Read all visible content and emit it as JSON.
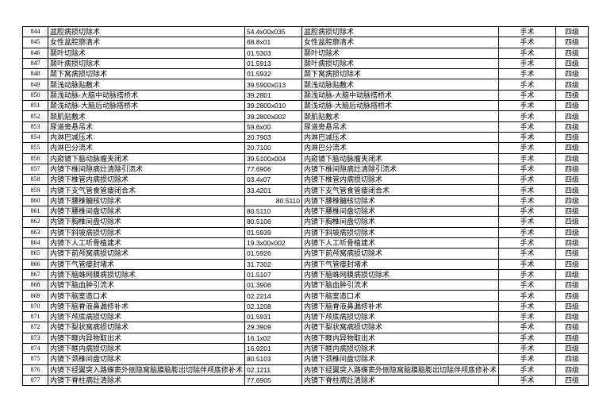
{
  "table": {
    "rows": [
      [
        "844",
        "盆腔病损切除术",
        "54.4x00x035",
        "盆腔病损切除术",
        "手术",
        "四级"
      ],
      [
        "845",
        "女性盆腔廓清术",
        "68.8x01",
        "女性盆腔廓清术",
        "手术",
        "四级"
      ],
      [
        "846",
        "颞叶切除术",
        "01.5303",
        "颞叶切除术",
        "手术",
        "四级"
      ],
      [
        "847",
        "颞叶病损切除术",
        "01.5913",
        "颞叶病损切除术",
        "手术",
        "四级"
      ],
      [
        "848",
        "颞下窝病损切除术",
        "01.5932",
        "颞下窝病损切除术",
        "手术",
        "四级"
      ],
      [
        "849",
        "颞浅动脉贴敷术",
        "39.5900x013",
        "颞浅动脉贴敷术",
        "手术",
        "四级"
      ],
      [
        "850",
        "颞浅动脉-大脑中动脉搭桥术",
        "39.2801",
        "颞浅动脉-大脑中动脉搭桥术",
        "手术",
        "四级"
      ],
      [
        "851",
        "颞浅动脉-大脑后动脉搭桥术",
        "39.2800x010",
        "颞浅动脉-大脑后动脉搭桥术",
        "手术",
        "四级"
      ],
      [
        "852",
        "颞肌贴敷术",
        "39.2800x002",
        "颞肌贴敷术",
        "手术",
        "四级"
      ],
      [
        "853",
        "尿道旁悬吊术",
        "59.6x00",
        "尿道旁悬吊术",
        "手术",
        "四级"
      ],
      [
        "854",
        "内淋巴减压术",
        "20.7903",
        "内淋巴减压术",
        "手术",
        "四级"
      ],
      [
        "855",
        "内淋巴分流术",
        "20.7100",
        "内淋巴分流术",
        "手术",
        "四级"
      ],
      [
        "856",
        "内窥镜下脑动脉瘤夹闭术",
        "39.5100x004",
        "内窥镜下脑动脉瘤夹闭术",
        "手术",
        "四级"
      ],
      [
        "857",
        "内镜下椎间隙病灶清除引流术",
        "77.6906",
        "内镜下椎间隙病灶清除引流术",
        "手术",
        "四级"
      ],
      [
        "858",
        "内镜下椎管内病损切除术",
        "03.4x07",
        "内镜下椎管内病损切除术",
        "手术",
        "四级"
      ],
      [
        "859",
        "内镜下支气管食管瘘闭合术",
        "33.4201",
        "内镜下支气管食管瘘闭合术",
        "手术",
        "四级"
      ],
      [
        "860",
        "内镜下腰椎髓核切除术",
        "80.5110",
        "内镜下腰椎髓核切除术",
        "手术",
        "四级"
      ],
      [
        "861",
        "内镜下腰椎间盘切除术",
        "80.5110",
        "内镜下腰椎间盘切除术",
        "手术",
        "四级"
      ],
      [
        "862",
        "内镜下胸椎间盘切除术",
        "80.5106",
        "内镜下胸椎间盘切除术",
        "手术",
        "四级"
      ],
      [
        "863",
        "内镜下斜坡病损切除术",
        "01.5939",
        "内镜下斜坡病损切除术",
        "手术",
        "四级"
      ],
      [
        "864",
        "内镜下人工听骨植建术",
        "19.3x00x002",
        "内镜下人工听骨植建术",
        "手术",
        "四级"
      ],
      [
        "865",
        "内镜下前颅窝病损切除术",
        "01.5926",
        "内镜下前颅窝病损切除术",
        "手术",
        "四级"
      ],
      [
        "866",
        "内镜下气管瘘封堵术",
        "31.7302",
        "内镜下气管瘘封堵术",
        "手术",
        "四级"
      ],
      [
        "867",
        "内镜下脑蛛网膜病损切除术",
        "01.5107",
        "内镜下脑蛛网膜病损切除术",
        "手术",
        "四级"
      ],
      [
        "868",
        "内镜下脑血肿引流术",
        "01.3906",
        "内镜下脑血肿引流术",
        "手术",
        "四级"
      ],
      [
        "869",
        "内镜下脑室造口术",
        "02.2214",
        "内镜下脑室造口术",
        "手术",
        "四级"
      ],
      [
        "870",
        "内镜下脑脊液鼻漏修补术",
        "02.1208",
        "内镜下脑脊液鼻漏修补术",
        "手术",
        "四级"
      ],
      [
        "871",
        "内镜下颅底病损切除术",
        "01.5931",
        "内镜下颅底病损切除术",
        "手术",
        "四级"
      ],
      [
        "872",
        "内镜下梨状窝病损切除术",
        "29.3909",
        "内镜下梨状窝病损切除术",
        "手术",
        "四级"
      ],
      [
        "873",
        "内镜下眶内异物取出术",
        "16.1x02",
        "内镜下眶内异物取出术",
        "手术",
        "四级"
      ],
      [
        "874",
        "内镜下眶内病损切除术",
        "16.9201",
        "内镜下眶内病损切除术",
        "手术",
        "四级"
      ],
      [
        "875",
        "内镜下颈椎间盘切除术",
        "80.5103",
        "内镜下颈椎间盘切除术",
        "手术",
        "四级"
      ],
      [
        "876",
        "内镜下经翼突入路蝶窦外侧隐窝脑膜脑膨出切除伴颅底修补术",
        "02.1211",
        "内镜下经翼突入路蝶窦外侧隐窝脑膜脑膨出切除伴颅底修补术",
        "手术",
        "四级"
      ],
      [
        "877",
        "内镜下脊柱病灶清除术",
        "77.6905",
        "内镜下脊柱病灶清除术",
        "手术",
        "四级"
      ]
    ]
  }
}
